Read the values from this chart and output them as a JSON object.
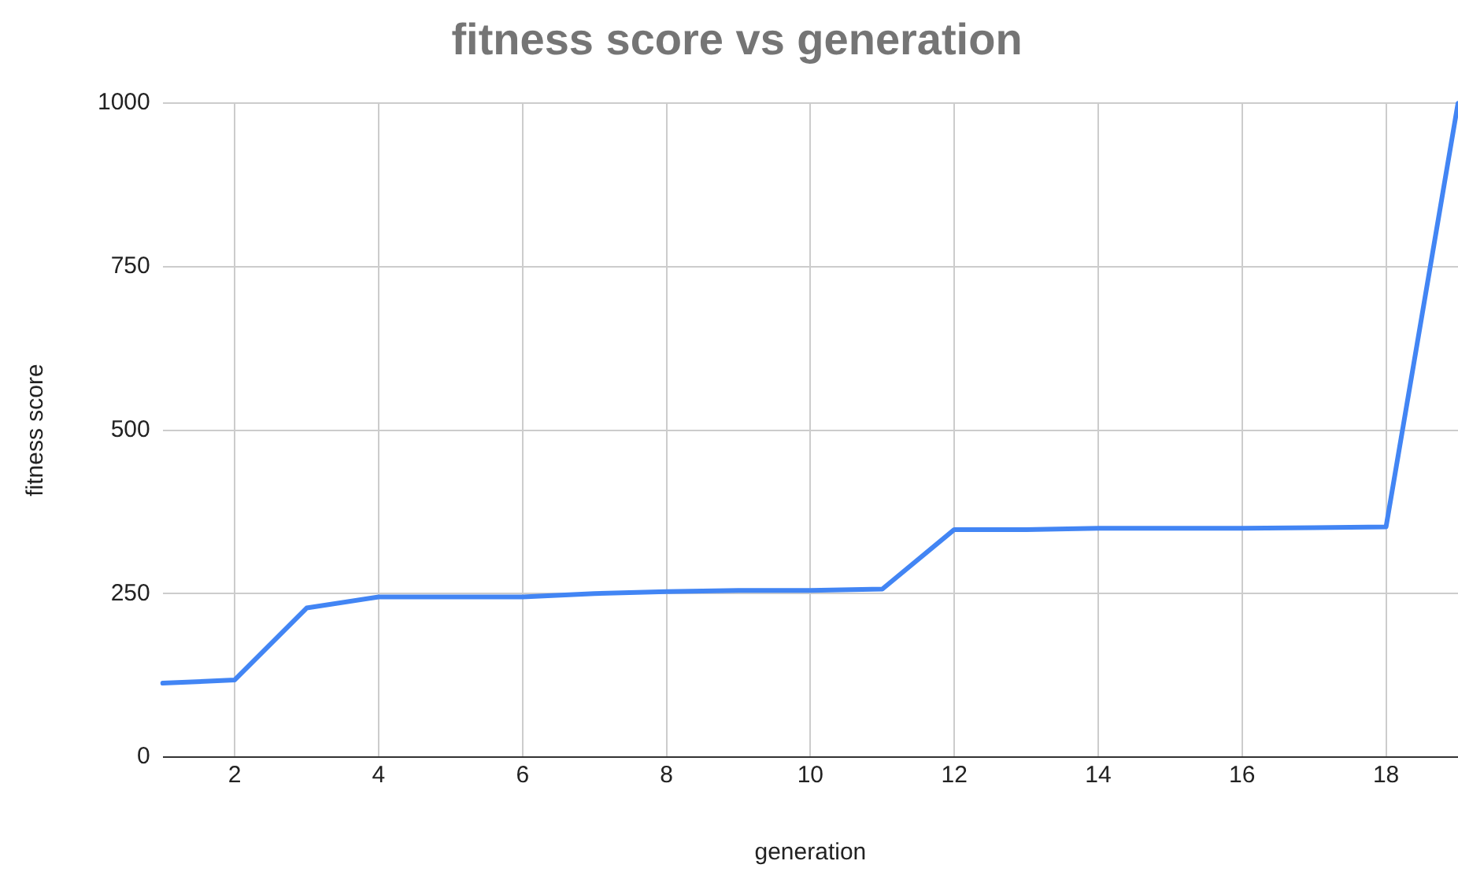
{
  "chart_data": {
    "type": "line",
    "title": "fitness score vs generation",
    "xlabel": "generation",
    "ylabel": "fitness score",
    "x": [
      1,
      2,
      3,
      4,
      5,
      6,
      7,
      8,
      9,
      10,
      11,
      12,
      13,
      14,
      15,
      16,
      17,
      18,
      19
    ],
    "series": [
      {
        "color": "#4285f4",
        "values": [
          113,
          118,
          228,
          245,
          245,
          245,
          250,
          253,
          255,
          255,
          257,
          348,
          348,
          350,
          350,
          350,
          351,
          352,
          1000
        ]
      }
    ],
    "xlim": [
      1,
      19
    ],
    "xticks": [
      2,
      4,
      6,
      8,
      10,
      12,
      14,
      16,
      18
    ],
    "ylim": [
      0,
      1000
    ],
    "yticks": [
      0,
      250,
      500,
      750,
      1000
    ],
    "grid": true,
    "legend": false,
    "marker": "none",
    "line_style": "solid"
  }
}
